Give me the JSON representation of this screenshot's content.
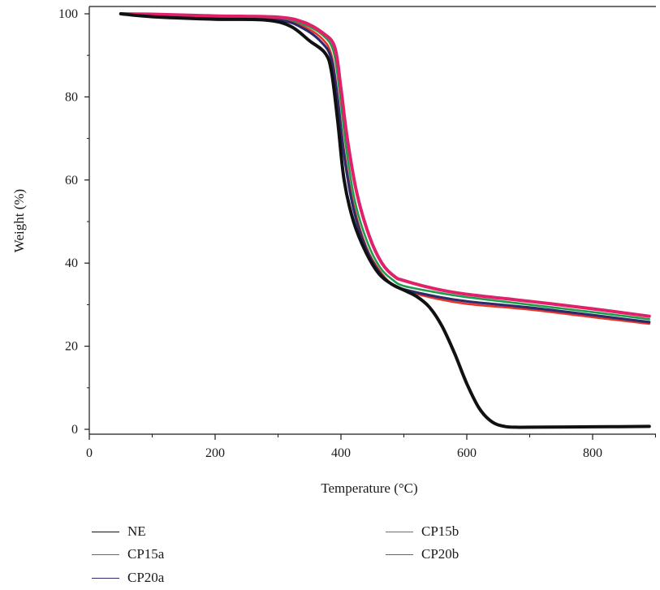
{
  "chart_data": {
    "type": "line",
    "xlabel": "Temperature (°C)",
    "ylabel": "Weight (%)",
    "xlim": [
      0,
      900
    ],
    "ylim": [
      0,
      100
    ],
    "xticks": [
      0,
      200,
      400,
      600,
      800
    ],
    "yticks": [
      0,
      20,
      40,
      60,
      80,
      100
    ],
    "grid": false,
    "legend_position": "bottom",
    "series": [
      {
        "name": "NE",
        "color": "#111111",
        "x": [
          50,
          100,
          200,
          280,
          320,
          350,
          375,
          385,
          395,
          405,
          420,
          440,
          460,
          480,
          500,
          520,
          540,
          560,
          580,
          600,
          620,
          640,
          660,
          680,
          700,
          800,
          890
        ],
        "y": [
          100,
          99.3,
          98.7,
          98.5,
          97,
          93.5,
          90.5,
          86,
          74,
          60,
          50,
          42.5,
          37.5,
          35,
          33.5,
          32,
          29.5,
          25,
          18.5,
          11,
          5,
          1.8,
          0.7,
          0.5,
          0.5,
          0.6,
          0.7
        ]
      },
      {
        "name": "CP15a",
        "color": "#e8352a",
        "x": [
          50,
          100,
          200,
          300,
          340,
          370,
          385,
          395,
          405,
          420,
          440,
          460,
          480,
          500,
          550,
          600,
          700,
          800,
          890
        ],
        "y": [
          100,
          99.7,
          99.3,
          98.8,
          97,
          94,
          90,
          80,
          67,
          54,
          44,
          38.5,
          35,
          33.5,
          31.5,
          30.2,
          28.8,
          27,
          25.4
        ]
      },
      {
        "name": "CP20a",
        "color": "#2e2a6b",
        "x": [
          50,
          100,
          200,
          300,
          340,
          370,
          385,
          395,
          405,
          420,
          440,
          460,
          480,
          500,
          550,
          600,
          700,
          800,
          890
        ],
        "y": [
          100,
          99.7,
          99.2,
          98.5,
          96.5,
          93,
          89,
          79,
          66,
          53,
          43.5,
          38,
          35,
          33.7,
          32,
          30.8,
          29.3,
          27.5,
          25.8
        ]
      },
      {
        "name": "CP15b",
        "color": "#1e9e4a",
        "x": [
          50,
          100,
          200,
          300,
          340,
          370,
          388,
          398,
          408,
          422,
          442,
          462,
          482,
          500,
          550,
          600,
          700,
          800,
          890
        ],
        "y": [
          100,
          99.8,
          99.4,
          99,
          97.5,
          95,
          91,
          81,
          68,
          55,
          45,
          39,
          36,
          34.5,
          33,
          31.8,
          30,
          28.2,
          26.5
        ]
      },
      {
        "name": "CP20b",
        "color": "#e0206a",
        "x": [
          50,
          100,
          200,
          300,
          340,
          370,
          390,
          400,
          410,
          425,
          445,
          465,
          485,
          500,
          550,
          600,
          700,
          800,
          890
        ],
        "y": [
          100,
          99.9,
          99.5,
          99.2,
          98,
          95.5,
          92,
          82,
          70,
          57,
          46.5,
          40,
          36.8,
          35.8,
          33.8,
          32.5,
          30.8,
          29,
          27.2
        ]
      }
    ]
  }
}
